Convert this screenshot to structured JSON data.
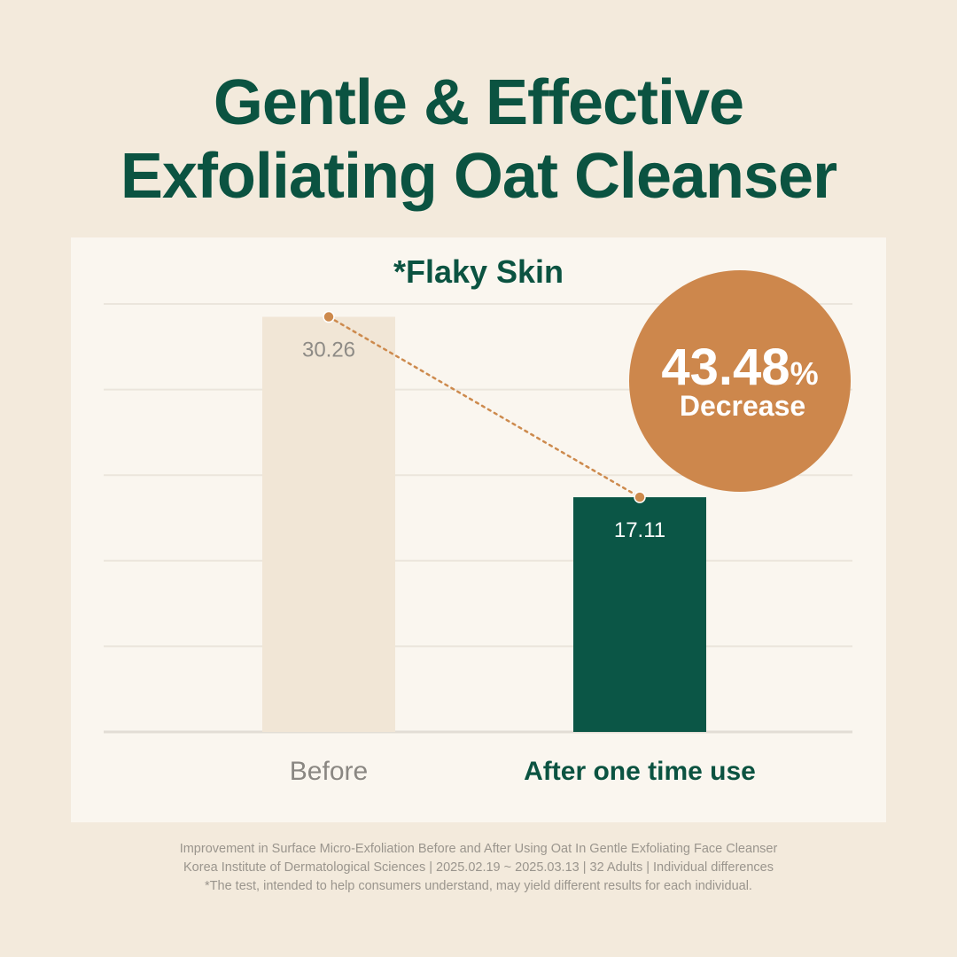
{
  "header": {
    "line1": "Gentle & Effective",
    "line2": "Exfoliating Oat Cleanser"
  },
  "chart_data": {
    "type": "bar",
    "title": "*Flaky Skin",
    "categories": [
      "Before",
      "After one time use"
    ],
    "values": [
      30.26,
      17.11
    ],
    "value_labels": [
      "30.26",
      "17.11"
    ],
    "ylim": [
      0,
      31.2
    ],
    "grid": true,
    "colors": [
      "#f1e6d6",
      "#0b5646"
    ],
    "connector_color": "#cd8a4d",
    "annotation": {
      "value": "43.48",
      "unit": "%",
      "label": "Decrease",
      "color": "#cd874c"
    }
  },
  "footer": {
    "line1": "Improvement in Surface Micro-Exfoliation Before and After Using Oat In Gentle Exfoliating Face Cleanser",
    "line2": "Korea Institute of Dermatological Sciences | 2025.02.19 ~ 2025.03.13 | 32 Adults | Individual differences",
    "line3": "*The test, intended to help consumers understand, may yield different results for each individual."
  }
}
